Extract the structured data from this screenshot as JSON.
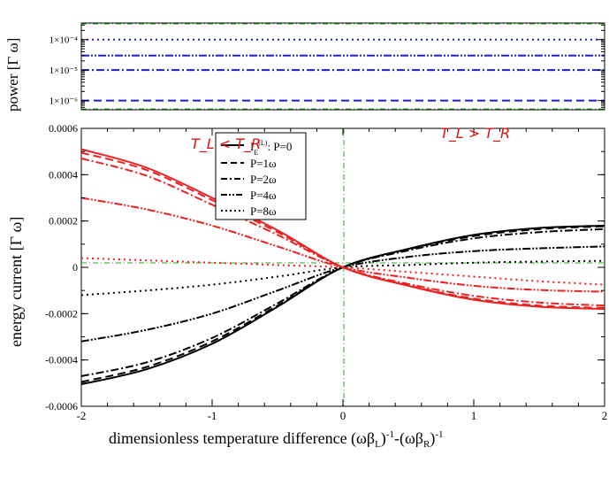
{
  "chart_data": [
    {
      "type": "line",
      "ylabel": "power [Γ ω]",
      "ytick_labels": [
        "1×10⁻⁶",
        "1×10⁻⁵",
        "1×10⁻⁴"
      ],
      "series": [
        {
          "y": 1e-06,
          "style": "dashed",
          "color": "#1f1fcc"
        },
        {
          "y": 1e-05,
          "style": "dashdot",
          "color": "#1f1fcc"
        },
        {
          "y": 3e-05,
          "style": "dashdotdot",
          "color": "#1f1fcc"
        },
        {
          "y": 0.0001,
          "style": "dotted",
          "color": "#1f1fcc"
        }
      ],
      "ylim_log": [
        5e-07,
        0.00035
      ],
      "xlim": [
        -2,
        2
      ]
    },
    {
      "type": "line",
      "xlabel": "dimensionless temperature difference (ωβ_L)^-1-(ωβ_R)^-1",
      "ylabel": "energy current [Γ ω]",
      "xlim": [
        -2,
        2
      ],
      "ylim": [
        -0.0006,
        0.0006
      ],
      "xtick_labels": [
        "-2",
        "-1",
        "0",
        "1",
        "2"
      ],
      "ytick_labels": [
        "-0.0006",
        "-0.0004",
        "-0.0002",
        "0",
        "0.0002",
        "0.0004",
        "0.0006"
      ],
      "legend": {
        "position": "upper-center-left",
        "entries": [
          {
            "label_main": "I",
            "label_sub": "E",
            "label_sup": "(L)",
            "label_rest": ": P=0",
            "style": "solid"
          },
          {
            "label": "P=1ω",
            "style": "dashed"
          },
          {
            "label": "P=2ω",
            "style": "dashdot"
          },
          {
            "label": "P=4ω",
            "style": "dashdotdot"
          },
          {
            "label": "P=8ω",
            "style": "dotted"
          }
        ]
      },
      "annotations": {
        "left": "T_L < T_R",
        "right": "T_L > T_R"
      },
      "series": [
        {
          "family": "black",
          "style": "solid",
          "color": "#000000",
          "amp": 0.00019,
          "x": [
            -2,
            -1.5,
            -1,
            -0.5,
            0,
            0.5,
            1,
            1.5,
            2
          ],
          "y": [
            -0.000505,
            -0.00044,
            -0.00033,
            -0.00017,
            0,
            8e-05,
            0.00014,
            0.00017,
            0.00018
          ]
        },
        {
          "family": "black",
          "style": "dashed",
          "color": "#000000",
          "amp": 0.000188,
          "x": [
            -2,
            -1.5,
            -1,
            -0.5,
            0,
            0.5,
            1,
            1.5,
            2
          ],
          "y": [
            -0.000495,
            -0.00043,
            -0.00032,
            -0.000165,
            0,
            7.8e-05,
            0.000135,
            0.000165,
            0.000177
          ]
        },
        {
          "family": "black",
          "style": "dashdot",
          "color": "#000000",
          "amp": 0.000182,
          "x": [
            -2,
            -1.5,
            -1,
            -0.5,
            0,
            0.5,
            1,
            1.5,
            2
          ],
          "y": [
            -0.00047,
            -0.00041,
            -0.000305,
            -0.000155,
            0,
            7.3e-05,
            0.000125,
            0.000152,
            0.000165
          ]
        },
        {
          "family": "black",
          "style": "dashdotdot",
          "color": "#000000",
          "amp": 0.00012,
          "x": [
            -2,
            -1.5,
            -1,
            -0.5,
            0,
            0.5,
            1,
            1.5,
            2
          ],
          "y": [
            -0.00032,
            -0.00027,
            -0.0002,
            -0.0001,
            0,
            4.5e-05,
            7e-05,
            8.2e-05,
            9e-05
          ]
        },
        {
          "family": "black",
          "style": "dotted",
          "color": "#000000",
          "amp": 4.5e-05,
          "x": [
            -2,
            -1.5,
            -1,
            -0.5,
            0,
            0.5,
            1,
            1.5,
            2
          ],
          "y": [
            -0.00012,
            -0.0001,
            -7.5e-05,
            -4e-05,
            0,
            1e-05,
            2e-05,
            2.5e-05,
            2.8e-05
          ]
        },
        {
          "family": "red",
          "style": "solid",
          "color": "#ee2020",
          "x": [
            -2,
            -1.5,
            -1,
            -0.5,
            0,
            0.5,
            1,
            1.5,
            2
          ],
          "y": [
            0.00051,
            0.00043,
            0.0003,
            0.00016,
            0.0,
            -8e-05,
            -0.00014,
            -0.00017,
            -0.00018
          ]
        },
        {
          "family": "red",
          "style": "dashed",
          "color": "#ee2020",
          "x": [
            -2,
            -1.5,
            -1,
            -0.5,
            0,
            0.5,
            1,
            1.5,
            2
          ],
          "y": [
            0.000495,
            0.00042,
            0.00029,
            0.000152,
            0.0,
            -7.8e-05,
            -0.000135,
            -0.000165,
            -0.000175
          ]
        },
        {
          "family": "red",
          "style": "dashdot",
          "color": "#ee2020",
          "x": [
            -2,
            -1.5,
            -1,
            -0.5,
            0,
            0.5,
            1,
            1.5,
            2
          ],
          "y": [
            0.00047,
            0.000395,
            0.00027,
            0.00014,
            0.0,
            -7.2e-05,
            -0.000123,
            -0.000152,
            -0.000165
          ]
        },
        {
          "family": "red",
          "style": "dashdotdot",
          "color": "#ee2020",
          "x": [
            -2,
            -1.5,
            -1,
            -0.5,
            0,
            0.5,
            1,
            1.5,
            2
          ],
          "y": [
            0.0003,
            0.00025,
            0.00018,
            9e-05,
            0.0,
            -4.5e-05,
            -8e-05,
            -9.8e-05,
            -0.000105
          ]
        },
        {
          "family": "red",
          "style": "dotted",
          "color": "#ee2020",
          "x": [
            -2,
            -1.5,
            -1,
            -0.5,
            0,
            0.5,
            1,
            1.5,
            2
          ],
          "y": [
            4e-05,
            3e-05,
            2e-05,
            1e-05,
            0.0,
            -2e-05,
            -4e-05,
            -6e-05,
            -7.5e-05
          ]
        }
      ],
      "guides": {
        "x0_color": "#22aa22",
        "y0_color": "#22aa22"
      }
    }
  ]
}
